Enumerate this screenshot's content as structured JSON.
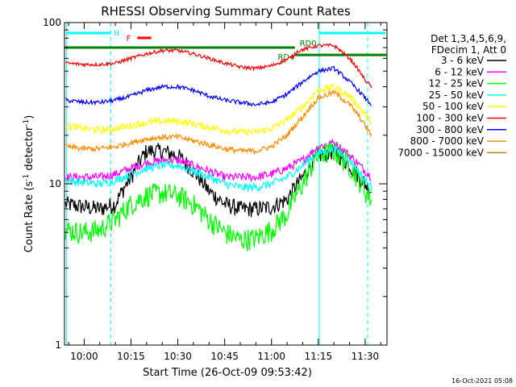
{
  "chart_data": {
    "type": "line",
    "title": "RHESSI Observing Summary Count Rates",
    "xlabel": "Start Time (26-Oct-09 09:53:42)",
    "ylabel_main": "Count Rate (s",
    "ylabel_sup": "-1",
    "ylabel_mid": " detector",
    "ylabel_sup2": "-1",
    "ylabel_end": ")",
    "y_scale": "log",
    "ylim": [
      1,
      100
    ],
    "y_ticks": [
      {
        "value": 1,
        "label": "1"
      },
      {
        "value": 10,
        "label": "10"
      },
      {
        "value": 100,
        "label": "100"
      }
    ],
    "xlim_minutes": [
      -6.3,
      97
    ],
    "x_ticks": [
      {
        "min": 0,
        "label": "10:00"
      },
      {
        "min": 15,
        "label": "10:15"
      },
      {
        "min": 30,
        "label": "10:30"
      },
      {
        "min": 45,
        "label": "10:45"
      },
      {
        "min": 60,
        "label": "11:00"
      },
      {
        "min": 75,
        "label": "11:15"
      },
      {
        "min": 90,
        "label": "11:30"
      }
    ],
    "legend_header": [
      "Det 1,3,4,5,6,9,",
      "FDecim 1, Att 0"
    ],
    "series": [
      {
        "name": "3 - 6 keV",
        "color": "#000000",
        "points": [
          [
            -6,
            7.5
          ],
          [
            0,
            7.2
          ],
          [
            5,
            7.0
          ],
          [
            10,
            7.5
          ],
          [
            15,
            11
          ],
          [
            20,
            16
          ],
          [
            25,
            16
          ],
          [
            30,
            15
          ],
          [
            35,
            12
          ],
          [
            40,
            9
          ],
          [
            45,
            7.5
          ],
          [
            50,
            7.0
          ],
          [
            55,
            7.0
          ],
          [
            60,
            7.2
          ],
          [
            65,
            8
          ],
          [
            70,
            11
          ],
          [
            75,
            15
          ],
          [
            80,
            16
          ],
          [
            85,
            13
          ],
          [
            90,
            10
          ],
          [
            92,
            9
          ]
        ]
      },
      {
        "name": "6 - 12 keV",
        "color": "#ff00ff",
        "points": [
          [
            -6,
            11
          ],
          [
            0,
            11
          ],
          [
            5,
            11
          ],
          [
            10,
            11.5
          ],
          [
            15,
            12.5
          ],
          [
            20,
            13.5
          ],
          [
            25,
            14
          ],
          [
            30,
            14
          ],
          [
            35,
            13
          ],
          [
            40,
            12
          ],
          [
            45,
            11
          ],
          [
            50,
            11
          ],
          [
            55,
            11
          ],
          [
            60,
            11.5
          ],
          [
            65,
            12.5
          ],
          [
            70,
            14
          ],
          [
            75,
            17
          ],
          [
            80,
            18
          ],
          [
            85,
            15
          ],
          [
            90,
            12
          ],
          [
            92,
            11
          ]
        ]
      },
      {
        "name": "12 - 25 keV",
        "color": "#00ff00",
        "points": [
          [
            -6,
            5.2
          ],
          [
            0,
            5.0
          ],
          [
            5,
            5.2
          ],
          [
            10,
            6.0
          ],
          [
            15,
            7.5
          ],
          [
            20,
            8.5
          ],
          [
            25,
            8.8
          ],
          [
            30,
            8.5
          ],
          [
            35,
            7.5
          ],
          [
            40,
            6
          ],
          [
            45,
            5.0
          ],
          [
            50,
            4.5
          ],
          [
            55,
            4.6
          ],
          [
            60,
            5.2
          ],
          [
            65,
            6.5
          ],
          [
            70,
            10
          ],
          [
            75,
            15
          ],
          [
            80,
            16
          ],
          [
            85,
            13
          ],
          [
            90,
            9
          ],
          [
            92,
            8
          ]
        ]
      },
      {
        "name": "25 - 50 keV",
        "color": "#00ffff",
        "points": [
          [
            -6,
            10.5
          ],
          [
            0,
            10.2
          ],
          [
            5,
            10.0
          ],
          [
            10,
            10.5
          ],
          [
            15,
            11.5
          ],
          [
            20,
            12.5
          ],
          [
            25,
            13
          ],
          [
            30,
            13
          ],
          [
            35,
            12
          ],
          [
            40,
            11
          ],
          [
            45,
            10
          ],
          [
            50,
            9.5
          ],
          [
            55,
            9.5
          ],
          [
            60,
            10
          ],
          [
            65,
            11
          ],
          [
            70,
            13
          ],
          [
            75,
            15.5
          ],
          [
            80,
            16.5
          ],
          [
            85,
            14
          ],
          [
            90,
            10.5
          ],
          [
            92,
            9.5
          ]
        ]
      },
      {
        "name": "50 - 100 keV",
        "color": "#ffff00",
        "points": [
          [
            -6,
            23
          ],
          [
            0,
            22
          ],
          [
            5,
            21.5
          ],
          [
            10,
            22
          ],
          [
            15,
            23
          ],
          [
            20,
            24
          ],
          [
            25,
            24.5
          ],
          [
            30,
            24.5
          ],
          [
            35,
            23.5
          ],
          [
            40,
            22.5
          ],
          [
            45,
            21.5
          ],
          [
            50,
            21
          ],
          [
            55,
            21
          ],
          [
            60,
            22
          ],
          [
            65,
            25
          ],
          [
            70,
            30
          ],
          [
            75,
            38
          ],
          [
            80,
            40
          ],
          [
            85,
            35
          ],
          [
            90,
            27
          ],
          [
            92,
            24
          ]
        ]
      },
      {
        "name": "100 - 300 keV",
        "color": "#ff0000",
        "points": [
          [
            -6,
            56
          ],
          [
            0,
            55
          ],
          [
            5,
            55
          ],
          [
            10,
            56
          ],
          [
            15,
            60
          ],
          [
            20,
            64
          ],
          [
            25,
            67
          ],
          [
            30,
            67
          ],
          [
            35,
            64
          ],
          [
            40,
            60
          ],
          [
            45,
            56
          ],
          [
            50,
            53
          ],
          [
            55,
            52
          ],
          [
            60,
            54
          ],
          [
            65,
            59
          ],
          [
            67,
            62
          ],
          [
            68,
            66
          ],
          [
            70,
            68
          ],
          [
            75,
            72
          ],
          [
            80,
            72
          ],
          [
            85,
            60
          ],
          [
            90,
            44
          ],
          [
            92,
            40
          ]
        ]
      },
      {
        "name": "300 - 800 keV",
        "color": "#0000ff",
        "points": [
          [
            -6,
            33
          ],
          [
            0,
            32
          ],
          [
            5,
            32
          ],
          [
            10,
            33
          ],
          [
            15,
            35
          ],
          [
            20,
            38
          ],
          [
            25,
            40
          ],
          [
            30,
            40
          ],
          [
            35,
            38
          ],
          [
            40,
            35
          ],
          [
            45,
            33
          ],
          [
            50,
            32
          ],
          [
            55,
            31
          ],
          [
            60,
            32
          ],
          [
            65,
            36
          ],
          [
            68,
            40
          ],
          [
            70,
            43
          ],
          [
            75,
            50
          ],
          [
            80,
            52
          ],
          [
            85,
            43
          ],
          [
            90,
            34
          ],
          [
            92,
            31
          ]
        ]
      },
      {
        "name": "800 - 7000 keV",
        "color": "#ff8c00",
        "points": [
          [
            -6,
            17
          ],
          [
            0,
            16.5
          ],
          [
            5,
            16.5
          ],
          [
            10,
            17
          ],
          [
            15,
            18
          ],
          [
            20,
            19
          ],
          [
            25,
            19.5
          ],
          [
            30,
            19.5
          ],
          [
            35,
            18.5
          ],
          [
            40,
            17.5
          ],
          [
            45,
            16.5
          ],
          [
            50,
            16
          ],
          [
            55,
            16
          ],
          [
            60,
            17
          ],
          [
            65,
            20
          ],
          [
            70,
            26
          ],
          [
            75,
            34
          ],
          [
            80,
            37
          ],
          [
            85,
            31
          ],
          [
            90,
            23
          ],
          [
            92,
            20
          ]
        ]
      },
      {
        "name": "7000 - 15000 keV",
        "color": "#b8860b",
        "points": []
      }
    ],
    "annotations": [
      {
        "label": "N",
        "color": "#00ffff"
      },
      {
        "label": "F",
        "color": "#ff0000"
      },
      {
        "label": "RD4",
        "color": "#008000"
      },
      {
        "label": "RD0",
        "color": "#008000"
      }
    ],
    "timestamp": "16-Oct-2021 05:08"
  }
}
